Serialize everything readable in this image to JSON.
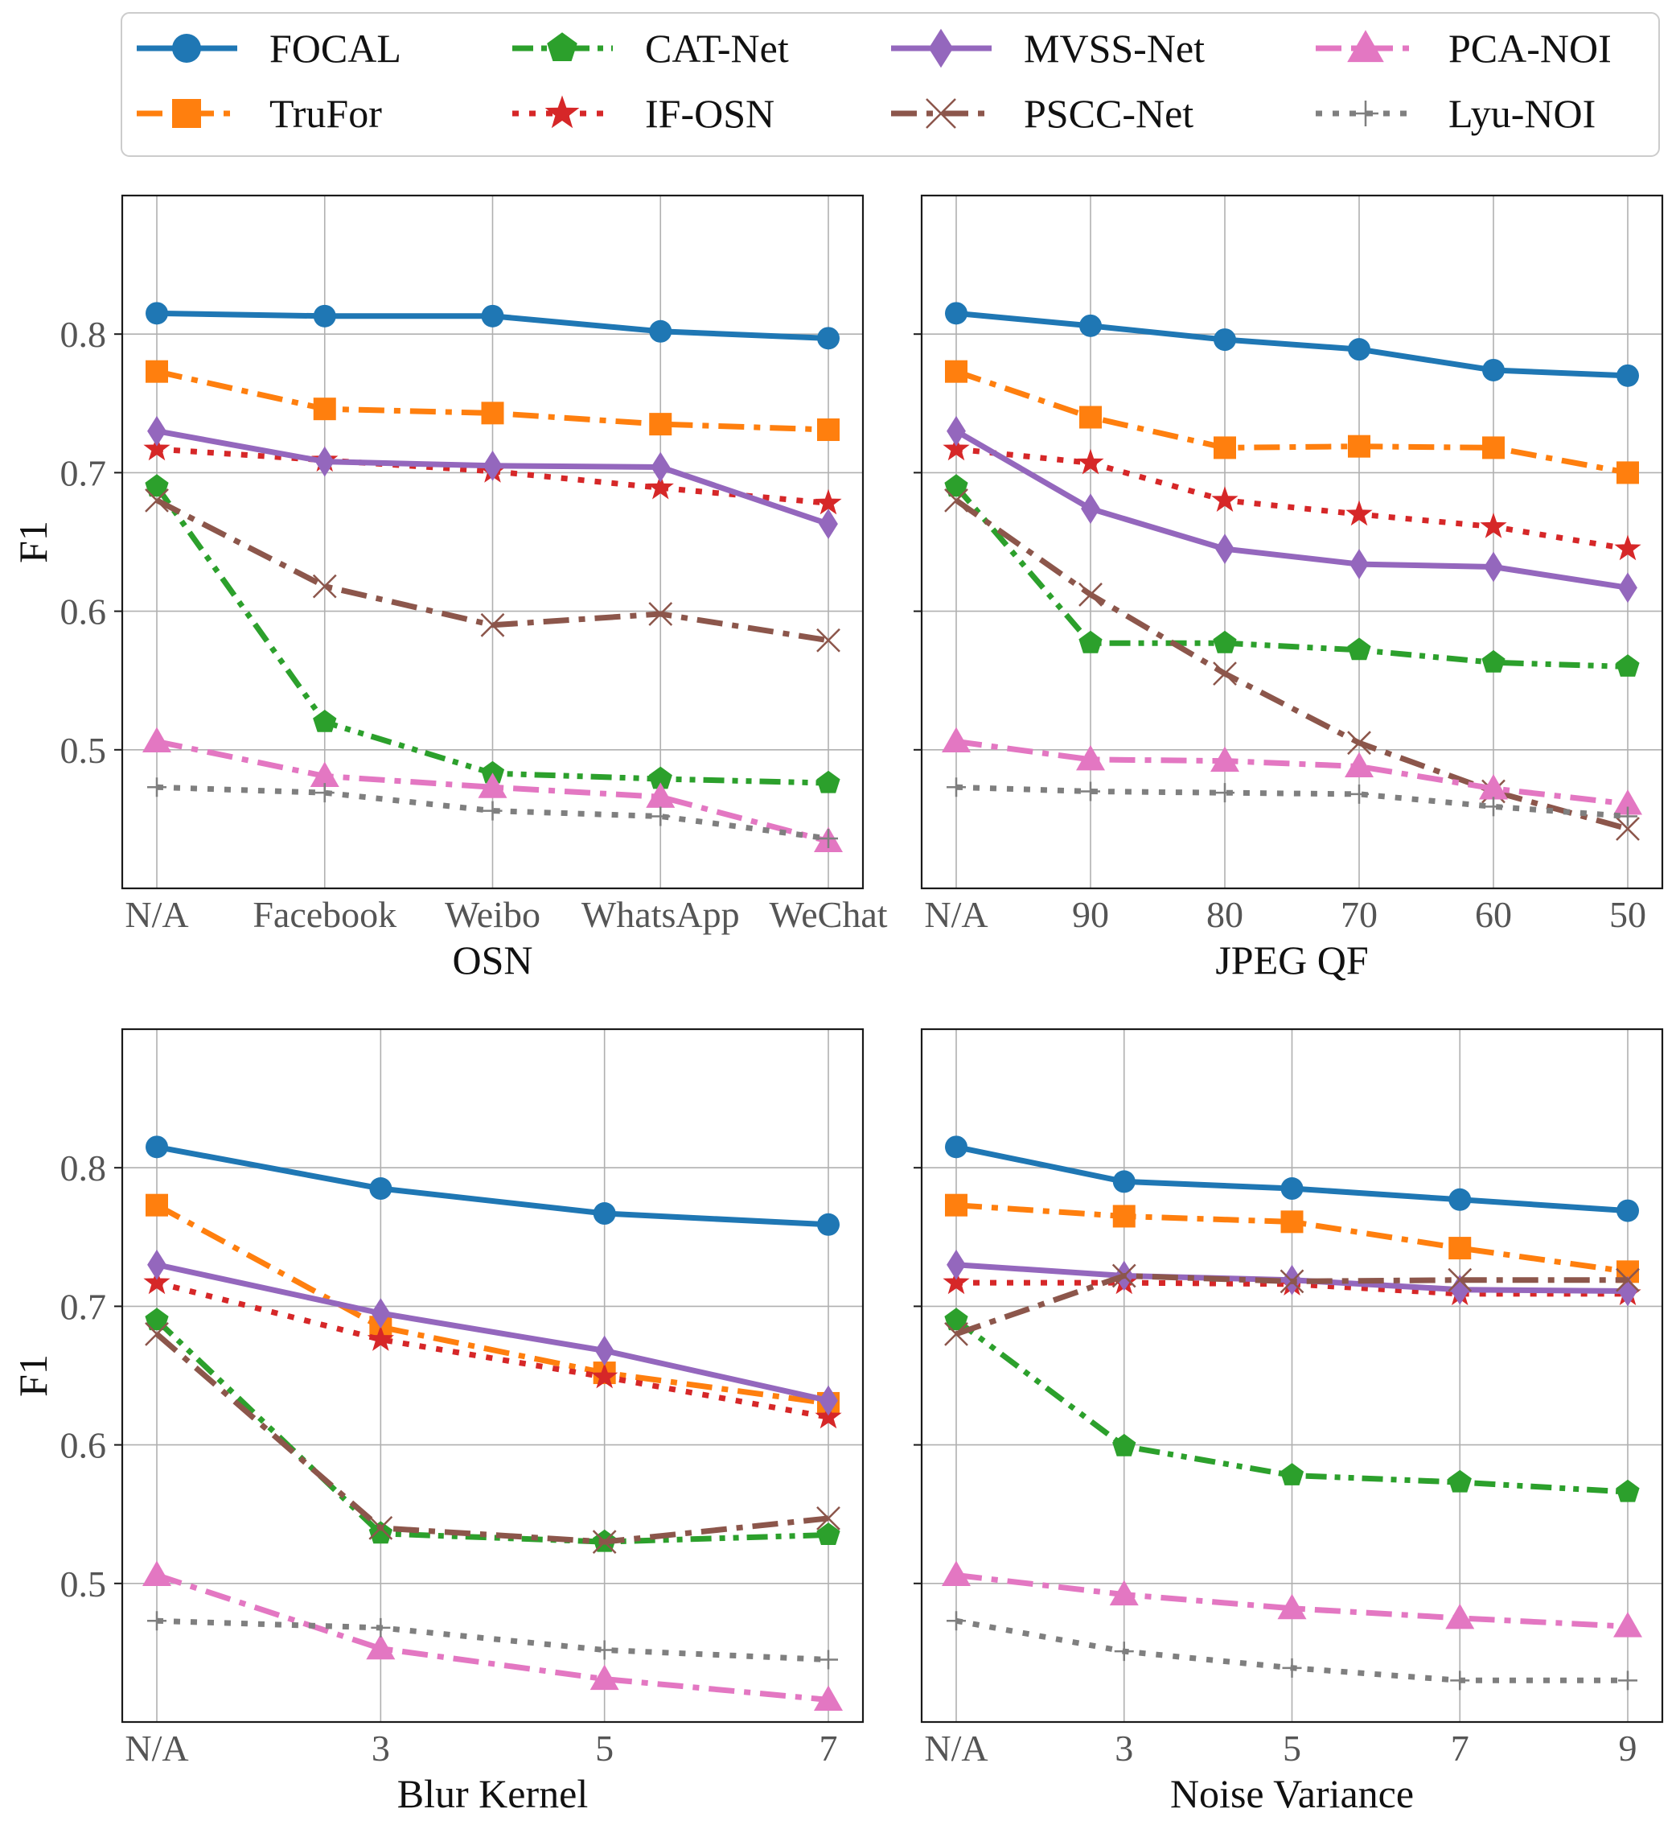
{
  "legend": {
    "entries": [
      "FOCAL",
      "TruFor",
      "CAT-Net",
      "IF-OSN",
      "MVSS-Net",
      "PSCC-Net",
      "PCA-NOI",
      "Lyu-NOI"
    ],
    "placement": "top",
    "columns": 4
  },
  "styles": {
    "FOCAL": {
      "color": "#1f77b4",
      "dash": "solid",
      "marker": "circle"
    },
    "TruFor": {
      "color": "#ff7f0e",
      "dash": "dashdot",
      "marker": "square"
    },
    "CAT-Net": {
      "color": "#2ca02c",
      "dash": "dashdotdot",
      "marker": "pentagon"
    },
    "IF-OSN": {
      "color": "#d62728",
      "dash": "dotted",
      "marker": "star"
    },
    "MVSS-Net": {
      "color": "#9467bd",
      "dash": "solid",
      "marker": "diamond"
    },
    "PSCC-Net": {
      "color": "#8c564b",
      "dash": "dashdot",
      "marker": "x"
    },
    "PCA-NOI": {
      "color": "#e377c2",
      "dash": "dashdot",
      "marker": "triangle"
    },
    "Lyu-NOI": {
      "color": "#7f7f7f",
      "dash": "dotted",
      "marker": "plus"
    }
  },
  "chart_data": [
    {
      "type": "line",
      "title": "",
      "xlabel": "OSN",
      "ylabel": "F1",
      "categories": [
        "N/A",
        "Facebook",
        "Weibo",
        "WhatsApp",
        "WeChat"
      ],
      "ylim": [
        0.4,
        0.9
      ],
      "yticks": [
        0.5,
        0.6,
        0.7,
        0.8
      ],
      "ytick_labels": [
        "0.5",
        "0.6",
        "0.7",
        "0.8"
      ],
      "grid": true,
      "series": [
        {
          "name": "FOCAL",
          "values": [
            0.815,
            0.813,
            0.813,
            0.802,
            0.797
          ]
        },
        {
          "name": "TruFor",
          "values": [
            0.773,
            0.746,
            0.743,
            0.735,
            0.731
          ]
        },
        {
          "name": "CAT-Net",
          "values": [
            0.69,
            0.52,
            0.483,
            0.479,
            0.476
          ]
        },
        {
          "name": "IF-OSN",
          "values": [
            0.717,
            0.709,
            0.701,
            0.689,
            0.678
          ]
        },
        {
          "name": "MVSS-Net",
          "values": [
            0.73,
            0.708,
            0.705,
            0.704,
            0.663
          ]
        },
        {
          "name": "PSCC-Net",
          "values": [
            0.68,
            0.618,
            0.59,
            0.598,
            0.579
          ]
        },
        {
          "name": "PCA-NOI",
          "values": [
            0.506,
            0.481,
            0.473,
            0.466,
            0.434
          ]
        },
        {
          "name": "Lyu-NOI",
          "values": [
            0.473,
            0.469,
            0.456,
            0.452,
            0.436
          ]
        }
      ]
    },
    {
      "type": "line",
      "title": "",
      "xlabel": "JPEG QF",
      "ylabel": "",
      "categories": [
        "N/A",
        "90",
        "80",
        "70",
        "60",
        "50"
      ],
      "ylim": [
        0.4,
        0.9
      ],
      "yticks": [
        0.5,
        0.6,
        0.7,
        0.8
      ],
      "ytick_labels": [],
      "grid": true,
      "series": [
        {
          "name": "FOCAL",
          "values": [
            0.815,
            0.806,
            0.796,
            0.789,
            0.774,
            0.77
          ]
        },
        {
          "name": "TruFor",
          "values": [
            0.773,
            0.74,
            0.718,
            0.719,
            0.718,
            0.7
          ]
        },
        {
          "name": "CAT-Net",
          "values": [
            0.69,
            0.577,
            0.577,
            0.572,
            0.563,
            0.56
          ]
        },
        {
          "name": "IF-OSN",
          "values": [
            0.717,
            0.707,
            0.68,
            0.67,
            0.661,
            0.645
          ]
        },
        {
          "name": "MVSS-Net",
          "values": [
            0.73,
            0.674,
            0.645,
            0.634,
            0.632,
            0.617
          ]
        },
        {
          "name": "PSCC-Net",
          "values": [
            0.68,
            0.612,
            0.555,
            0.505,
            0.47,
            0.443
          ]
        },
        {
          "name": "PCA-NOI",
          "values": [
            0.506,
            0.493,
            0.492,
            0.488,
            0.472,
            0.461
          ]
        },
        {
          "name": "Lyu-NOI",
          "values": [
            0.473,
            0.47,
            0.469,
            0.468,
            0.459,
            0.452
          ]
        }
      ]
    },
    {
      "type": "line",
      "title": "",
      "xlabel": "Blur Kernel",
      "ylabel": "F1",
      "categories": [
        "N/A",
        "3",
        "5",
        "7"
      ],
      "ylim": [
        0.4,
        0.9
      ],
      "yticks": [
        0.5,
        0.6,
        0.7,
        0.8
      ],
      "ytick_labels": [
        "0.5",
        "0.6",
        "0.7",
        "0.8"
      ],
      "grid": true,
      "series": [
        {
          "name": "FOCAL",
          "values": [
            0.815,
            0.785,
            0.767,
            0.759
          ]
        },
        {
          "name": "TruFor",
          "values": [
            0.773,
            0.685,
            0.652,
            0.63
          ]
        },
        {
          "name": "CAT-Net",
          "values": [
            0.69,
            0.536,
            0.53,
            0.535
          ]
        },
        {
          "name": "IF-OSN",
          "values": [
            0.717,
            0.676,
            0.649,
            0.62
          ]
        },
        {
          "name": "MVSS-Net",
          "values": [
            0.73,
            0.695,
            0.668,
            0.632
          ]
        },
        {
          "name": "PSCC-Net",
          "values": [
            0.68,
            0.54,
            0.53,
            0.547
          ]
        },
        {
          "name": "PCA-NOI",
          "values": [
            0.506,
            0.453,
            0.431,
            0.416
          ]
        },
        {
          "name": "Lyu-NOI",
          "values": [
            0.473,
            0.468,
            0.452,
            0.445
          ]
        }
      ]
    },
    {
      "type": "line",
      "title": "",
      "xlabel": "Noise Variance",
      "ylabel": "",
      "categories": [
        "N/A",
        "3",
        "5",
        "7",
        "9"
      ],
      "ylim": [
        0.4,
        0.9
      ],
      "yticks": [
        0.5,
        0.6,
        0.7,
        0.8
      ],
      "ytick_labels": [],
      "grid": true,
      "series": [
        {
          "name": "FOCAL",
          "values": [
            0.815,
            0.79,
            0.785,
            0.777,
            0.769
          ]
        },
        {
          "name": "TruFor",
          "values": [
            0.773,
            0.765,
            0.761,
            0.742,
            0.725
          ]
        },
        {
          "name": "CAT-Net",
          "values": [
            0.69,
            0.599,
            0.578,
            0.573,
            0.566
          ]
        },
        {
          "name": "IF-OSN",
          "values": [
            0.717,
            0.717,
            0.716,
            0.709,
            0.709
          ]
        },
        {
          "name": "MVSS-Net",
          "values": [
            0.73,
            0.722,
            0.719,
            0.712,
            0.711
          ]
        },
        {
          "name": "PSCC-Net",
          "values": [
            0.68,
            0.722,
            0.718,
            0.719,
            0.719
          ]
        },
        {
          "name": "PCA-NOI",
          "values": [
            0.506,
            0.492,
            0.482,
            0.475,
            0.469
          ]
        },
        {
          "name": "Lyu-NOI",
          "values": [
            0.473,
            0.451,
            0.439,
            0.43,
            0.43
          ]
        }
      ]
    }
  ]
}
